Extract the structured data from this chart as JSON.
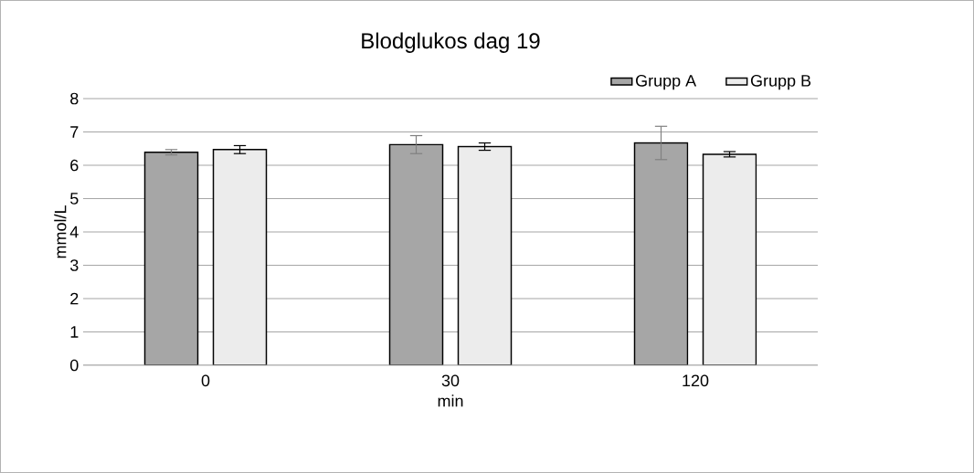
{
  "chart_data": {
    "type": "bar",
    "title": "Blodglukos dag 19",
    "xlabel": "min",
    "ylabel": "mmol/L",
    "categories": [
      "0",
      "30",
      "120"
    ],
    "series": [
      {
        "name": "Grupp A",
        "color": "#a6a6a6",
        "values": [
          6.39,
          6.62,
          6.67
        ],
        "errors": [
          0.08,
          0.27,
          0.5
        ]
      },
      {
        "name": "Grupp B",
        "color": "#ececec",
        "values": [
          6.47,
          6.56,
          6.33
        ],
        "errors": [
          0.12,
          0.11,
          0.08
        ]
      }
    ],
    "ylim": [
      0,
      8
    ],
    "yticks": [
      0,
      1,
      2,
      3,
      4,
      5,
      6,
      7,
      8
    ],
    "grid": "y",
    "legend": "top right"
  }
}
